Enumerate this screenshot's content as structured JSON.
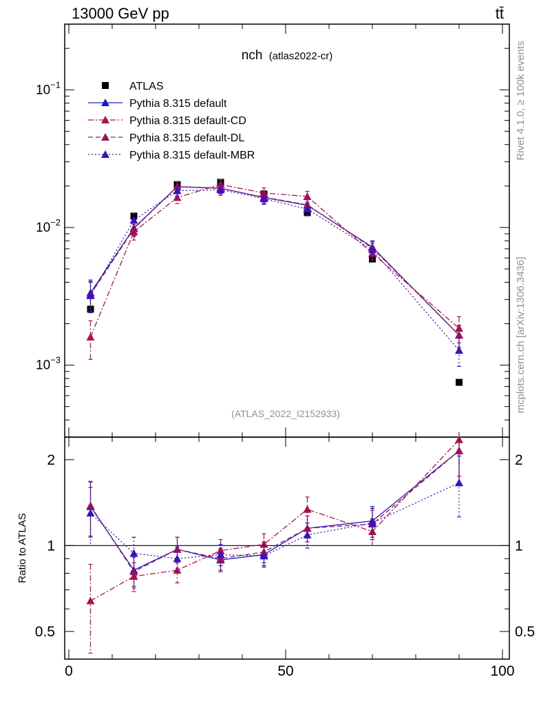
{
  "header": {
    "left_title": "13000 GeV pp",
    "right_title": "tt̄"
  },
  "side_labels": {
    "rivet": "Rivet 4.1.0, ≥ 100k events",
    "mcplots": "mcplots.cern.ch [arXiv:1306.3436]"
  },
  "chart_data": [
    {
      "type": "scatter",
      "panel": "main",
      "title": "nch",
      "title_suffix": "(atlas2022-cr)",
      "analysis_label": "(ATLAS_2022_I2152933)",
      "yscale": "log",
      "ylim": [
        0.0003,
        0.3
      ],
      "xlim": [
        0,
        100
      ],
      "y_ticks": [
        {
          "value": 0.001,
          "base": "10",
          "exp": "−3"
        },
        {
          "value": 0.01,
          "base": "10",
          "exp": "−2"
        },
        {
          "value": 0.1,
          "base": "10",
          "exp": "−1"
        }
      ],
      "x": [
        5,
        15,
        25,
        35,
        45,
        55,
        70,
        90
      ],
      "series": [
        {
          "name": "ATLAS",
          "color": "#000000",
          "marker": "square",
          "line": "none",
          "values": [
            0.00255,
            0.0121,
            0.0205,
            0.0213,
            0.0175,
            0.0128,
            0.0059,
            0.00075
          ],
          "errors": [
            0.0003,
            0.0005,
            0.0008,
            0.0008,
            0.0007,
            0.0006,
            0.0003,
            5e-05
          ]
        },
        {
          "name": "Pythia 8.315 default",
          "color": "#1a1acc",
          "marker": "triangle",
          "line": "solid",
          "values": [
            0.00335,
            0.0099,
            0.0198,
            0.0193,
            0.0165,
            0.0145,
            0.0072,
            0.00165
          ],
          "errors": [
            0.0008,
            0.0012,
            0.0017,
            0.0017,
            0.0015,
            0.0014,
            0.0008,
            0.0003
          ]
        },
        {
          "name": "Pythia 8.315 default-CD",
          "color": "#b0104a",
          "marker": "triangle",
          "line": "dashdot",
          "values": [
            0.0016,
            0.0093,
            0.0165,
            0.0205,
            0.0178,
            0.0168,
            0.0065,
            0.00185
          ],
          "errors": [
            0.0005,
            0.0012,
            0.0016,
            0.0018,
            0.0016,
            0.0015,
            0.0007,
            0.0004
          ]
        },
        {
          "name": "Pythia 8.315 default-DL",
          "color": "#a0105a",
          "marker": "triangle",
          "line": "dashed",
          "values": [
            0.00325,
            0.0098,
            0.0198,
            0.0192,
            0.0166,
            0.0146,
            0.0071,
            0.00165
          ],
          "errors": [
            0.0008,
            0.0012,
            0.0017,
            0.0017,
            0.0015,
            0.0014,
            0.0008,
            0.0003
          ]
        },
        {
          "name": "Pythia 8.315 default-MBR",
          "color": "#3a10c8",
          "marker": "triangle",
          "line": "dotted",
          "values": [
            0.0032,
            0.0113,
            0.0185,
            0.0188,
            0.0162,
            0.0136,
            0.0069,
            0.00128
          ],
          "errors": [
            0.0008,
            0.0013,
            0.0016,
            0.0017,
            0.0015,
            0.0013,
            0.0008,
            0.0003
          ]
        }
      ]
    },
    {
      "type": "scatter",
      "panel": "ratio",
      "ylabel": "Ratio to ATLAS",
      "yscale": "log",
      "ylim": [
        0.4,
        2.4
      ],
      "xlim": [
        0,
        100
      ],
      "y_ticks": [
        {
          "value": 0.5,
          "label": "0.5"
        },
        {
          "value": 1,
          "label": "1"
        },
        {
          "value": 2,
          "label": "2"
        }
      ],
      "x_ticks": [
        {
          "value": 0,
          "label": "0"
        },
        {
          "value": 50,
          "label": "50"
        },
        {
          "value": 100,
          "label": "100"
        }
      ],
      "x": [
        5,
        15,
        25,
        35,
        45,
        55,
        70,
        90
      ],
      "series": [
        {
          "name": "Pythia 8.315 default",
          "color": "#1a1acc",
          "line": "solid",
          "values": [
            1.37,
            0.82,
            0.97,
            0.89,
            0.93,
            1.15,
            1.22,
            2.15
          ],
          "errors": [
            0.3,
            0.1,
            0.1,
            0.08,
            0.08,
            0.12,
            0.15,
            0.5
          ]
        },
        {
          "name": "Pythia 8.315 default-CD",
          "color": "#b0104a",
          "line": "dashdot",
          "values": [
            0.64,
            0.78,
            0.82,
            0.96,
            1.01,
            1.34,
            1.12,
            2.35
          ],
          "errors": [
            0.22,
            0.09,
            0.08,
            0.09,
            0.09,
            0.14,
            0.12,
            0.6
          ]
        },
        {
          "name": "Pythia 8.315 default-DL",
          "color": "#a0105a",
          "line": "dashed",
          "values": [
            1.38,
            0.81,
            0.97,
            0.9,
            0.95,
            1.15,
            1.19,
            2.15
          ],
          "errors": [
            0.3,
            0.1,
            0.1,
            0.08,
            0.08,
            0.12,
            0.14,
            0.5
          ]
        },
        {
          "name": "Pythia 8.315 default-MBR",
          "color": "#3a10c8",
          "line": "dotted",
          "values": [
            1.3,
            0.94,
            0.9,
            0.93,
            0.92,
            1.09,
            1.2,
            1.66
          ],
          "errors": [
            0.3,
            0.13,
            0.09,
            0.08,
            0.08,
            0.11,
            0.15,
            0.4
          ]
        }
      ]
    }
  ]
}
